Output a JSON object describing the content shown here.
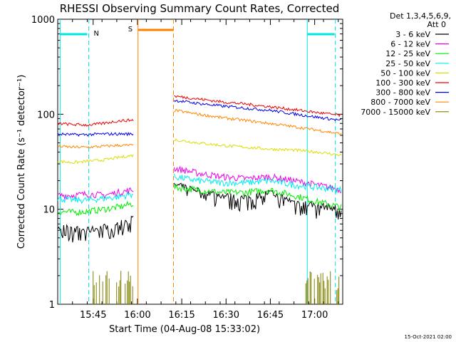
{
  "chart_data": {
    "type": "line",
    "title": "RHESSI Observing Summary Count Rates, Corrected",
    "xlabel": "Start Time (04-Aug-08 15:33:02)",
    "ylabel": "Corrected Count Rate (s⁻¹ detector⁻¹)",
    "yscale": "log",
    "ylim": [
      1,
      1000
    ],
    "xlim_min": [
      0,
      96.5
    ],
    "x_ticks": [
      {
        "min": 12,
        "label": "15:45"
      },
      {
        "min": 27,
        "label": "16:00"
      },
      {
        "min": 42,
        "label": "16:15"
      },
      {
        "min": 57,
        "label": "16:30"
      },
      {
        "min": 72,
        "label": "16:45"
      },
      {
        "min": 87,
        "label": "17:00"
      }
    ],
    "y_ticks": [
      {
        "value": 1,
        "label": "1"
      },
      {
        "value": 10,
        "label": "10"
      },
      {
        "value": 100,
        "label": "100"
      },
      {
        "value": 1000,
        "label": "1000"
      }
    ],
    "legend": {
      "placement": "top-right, outside plot",
      "header": [
        "Det 1,3,4,5,6,9,",
        "Att 0"
      ]
    },
    "series": [
      {
        "name": "3 - 6 keV",
        "color": "#000000",
        "seg1": [
          6.5,
          6.2,
          6.0,
          6.5,
          7.0,
          8.0
        ],
        "seg2": [
          18,
          16,
          14,
          13,
          15,
          12,
          11,
          10
        ]
      },
      {
        "name": "6 - 12 keV",
        "color": "#ee00ee",
        "seg1": [
          14,
          14,
          14.5,
          14,
          15,
          16
        ],
        "seg2": [
          27,
          24,
          22,
          21,
          22,
          20,
          18,
          16
        ]
      },
      {
        "name": "12 - 25 keV",
        "color": "#00ee00",
        "seg1": [
          9.5,
          9.3,
          9.5,
          10,
          10.5,
          11.5
        ],
        "seg2": [
          17,
          16,
          15,
          15,
          16,
          14,
          12,
          10.5
        ]
      },
      {
        "name": "25 - 50 keV",
        "color": "#00eeee",
        "seg1": [
          13,
          12.5,
          12.5,
          13,
          13.5,
          14.5
        ],
        "seg2": [
          22,
          20,
          19,
          19,
          20,
          18,
          17,
          16
        ]
      },
      {
        "name": "50 - 100 keV",
        "color": "#dddd00",
        "seg1": [
          32,
          31,
          32,
          33,
          35,
          37
        ],
        "seg2": [
          54,
          50,
          47,
          45,
          43,
          42,
          40,
          37
        ]
      },
      {
        "name": "100 - 300 keV",
        "color": "#ee0000",
        "seg1": [
          80,
          78,
          77,
          80,
          85,
          87
        ],
        "seg2": [
          155,
          145,
          135,
          128,
          120,
          112,
          104,
          97
        ]
      },
      {
        "name": "300 - 800 keV",
        "color": "#0000ee",
        "seg1": [
          62,
          61,
          61,
          62,
          62,
          62
        ],
        "seg2": [
          140,
          130,
          122,
          116,
          110,
          101,
          93,
          86
        ]
      },
      {
        "name": "800 - 7000 keV",
        "color": "#ff8800",
        "seg1": [
          46,
          45,
          45,
          46,
          47,
          47
        ],
        "seg2": [
          110,
          100,
          92,
          86,
          80,
          74,
          68,
          62
        ]
      },
      {
        "name": "7000 - 15000 keV",
        "color": "#808000"
      }
    ],
    "segment1_min": [
      0,
      25.6
    ],
    "segment2_min": [
      39.4,
      96.0
    ],
    "annotations": [
      {
        "label": "N",
        "color": "#00e5e5"
      },
      {
        "label": "S",
        "color": "#ff8000"
      }
    ],
    "event_min": {
      "night1": [
        0.8,
        10.5
      ],
      "night2": [
        84.5,
        94.0
      ],
      "saa": [
        27.2,
        39.2
      ]
    },
    "footer_date": "15-Oct-2021 02:00"
  }
}
